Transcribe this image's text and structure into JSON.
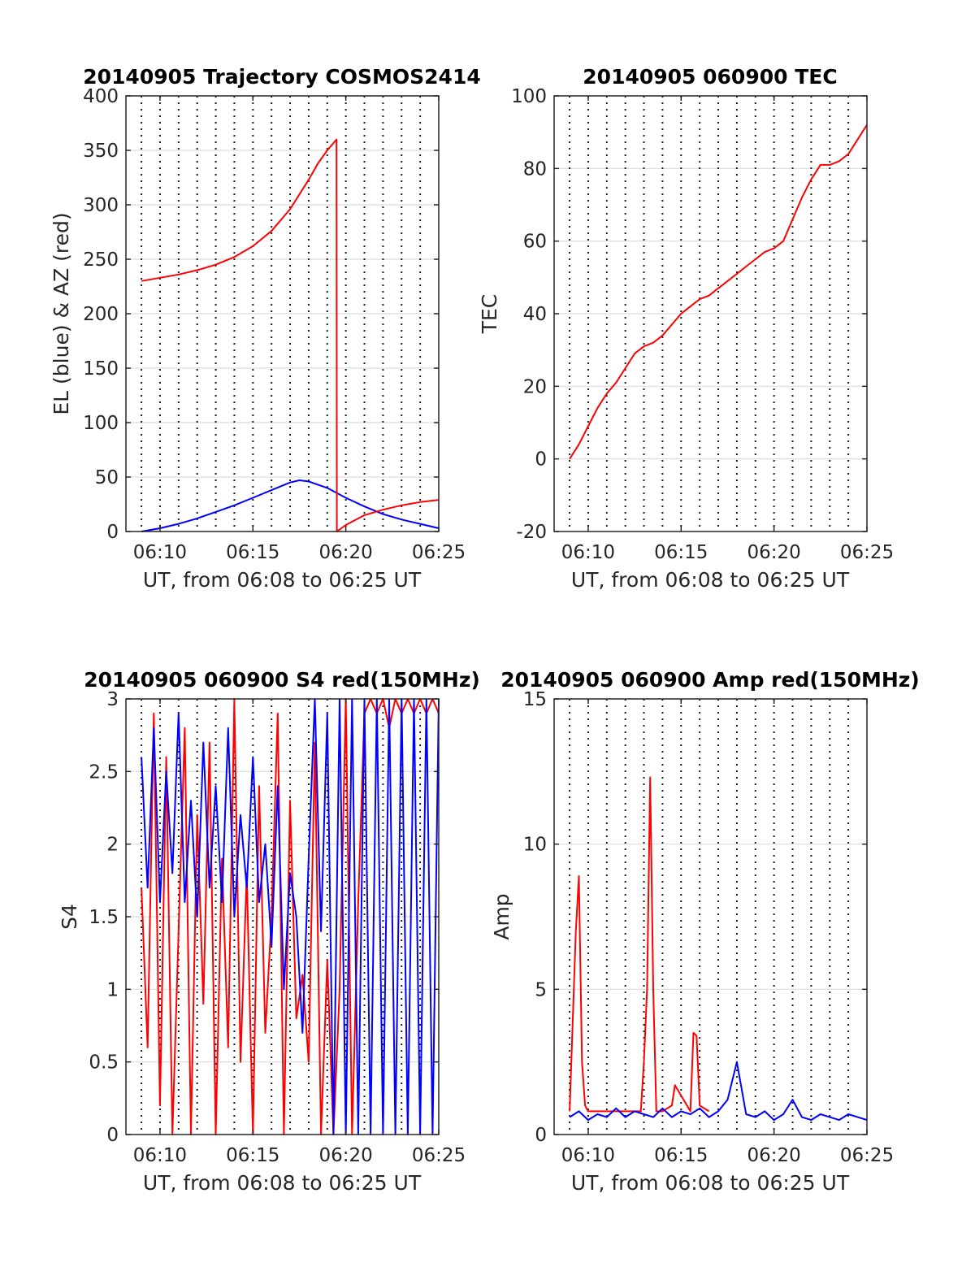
{
  "figure": {
    "xlabel": "UT, from 06:08 to 06:25 UT",
    "x_tick_labels": [
      "06:10",
      "06:15",
      "06:20",
      "06:25"
    ]
  },
  "chart_data": [
    {
      "id": "trajectory",
      "type": "line",
      "title": "20140905 Trajectory COSMOS2414",
      "xlabel": "UT, from 06:08 to 06:25 UT",
      "ylabel": "EL (blue) & AZ (red)",
      "xlim": [
        "06:08:10",
        "06:25:00"
      ],
      "ylim": [
        0,
        400
      ],
      "y_ticks": [
        0,
        50,
        100,
        150,
        200,
        250,
        300,
        350,
        400
      ],
      "x_ticks": [
        "06:10",
        "06:15",
        "06:20",
        "06:25"
      ],
      "grid": "on",
      "series": [
        {
          "color": "#0000ff",
          "x": [
            "06:09:00",
            "06:10:00",
            "06:11:00",
            "06:12:00",
            "06:13:00",
            "06:14:00",
            "06:15:00",
            "06:16:00",
            "06:17:00",
            "06:17:30",
            "06:18:00",
            "06:19:00",
            "06:20:00",
            "06:21:00",
            "06:22:00",
            "06:23:00",
            "06:24:00",
            "06:25:00"
          ],
          "y": [
            0,
            3,
            7,
            12,
            18,
            24,
            31,
            38,
            45,
            47,
            46,
            40,
            31,
            23,
            16,
            11,
            7,
            3
          ]
        },
        {
          "color": "#ff0000",
          "x": [
            "06:09:00",
            "06:10:00",
            "06:11:00",
            "06:12:00",
            "06:13:00",
            "06:14:00",
            "06:15:00",
            "06:16:00",
            "06:17:00",
            "06:18:00",
            "06:18:30",
            "06:19:00",
            "06:19:30",
            "06:19:31",
            "06:20:00",
            "06:21:00",
            "06:22:00",
            "06:23:00",
            "06:24:00",
            "06:25:00"
          ],
          "y": [
            230,
            233,
            236,
            240,
            245,
            252,
            262,
            276,
            296,
            323,
            338,
            350,
            360,
            0,
            6,
            15,
            20,
            24,
            27,
            29
          ]
        }
      ]
    },
    {
      "id": "tec",
      "type": "line",
      "title": "20140905 060900 TEC",
      "xlabel": "UT, from 06:08 to 06:25 UT",
      "ylabel": "TEC",
      "xlim": [
        "06:08:10",
        "06:25:00"
      ],
      "ylim": [
        -20,
        100
      ],
      "y_ticks": [
        -20,
        0,
        20,
        40,
        60,
        80,
        100
      ],
      "x_ticks": [
        "06:10",
        "06:15",
        "06:20",
        "06:25"
      ],
      "grid": "on",
      "series": [
        {
          "color": "#ff0000",
          "x": [
            "06:09:00",
            "06:09:30",
            "06:10:00",
            "06:10:30",
            "06:11:00",
            "06:11:30",
            "06:12:00",
            "06:12:30",
            "06:13:00",
            "06:13:30",
            "06:14:00",
            "06:14:30",
            "06:15:00",
            "06:15:30",
            "06:16:00",
            "06:16:30",
            "06:17:00",
            "06:17:30",
            "06:18:00",
            "06:18:30",
            "06:19:00",
            "06:19:30",
            "06:20:00",
            "06:20:30",
            "06:21:00",
            "06:21:30",
            "06:22:00",
            "06:22:30",
            "06:23:00",
            "06:23:30",
            "06:24:00",
            "06:24:30",
            "06:25:00"
          ],
          "y": [
            0,
            4,
            9,
            14,
            18,
            21,
            25,
            29,
            31,
            32,
            34,
            37,
            40,
            42,
            44,
            45,
            47,
            49,
            51,
            53,
            55,
            57,
            58,
            60,
            66,
            72,
            77,
            81,
            81,
            82,
            84,
            88,
            92
          ]
        }
      ]
    },
    {
      "id": "s4",
      "type": "line",
      "title": "20140905 060900 S4 red(150MHz)",
      "xlabel": "UT, from 06:08 to 06:25 UT",
      "ylabel": "S4",
      "xlim": [
        "06:08:10",
        "06:25:00"
      ],
      "ylim": [
        0,
        3
      ],
      "y_ticks": [
        0,
        0.5,
        1,
        1.5,
        2,
        2.5,
        3
      ],
      "y_tick_labels": [
        "0",
        "0.5",
        "1",
        "1.5",
        "2",
        "2.5",
        "3"
      ],
      "x_ticks": [
        "06:10",
        "06:15",
        "06:20",
        "06:25"
      ],
      "grid": "on",
      "series": [
        {
          "color": "#ff0000",
          "x": [
            "06:09:00",
            "06:09:20",
            "06:09:40",
            "06:10:00",
            "06:10:20",
            "06:10:40",
            "06:11:00",
            "06:11:20",
            "06:11:40",
            "06:12:00",
            "06:12:20",
            "06:12:40",
            "06:13:00",
            "06:13:20",
            "06:13:40",
            "06:14:00",
            "06:14:20",
            "06:14:40",
            "06:15:00",
            "06:15:20",
            "06:15:40",
            "06:16:00",
            "06:16:20",
            "06:16:40",
            "06:17:00",
            "06:17:20",
            "06:17:40",
            "06:18:00",
            "06:18:20",
            "06:18:40",
            "06:19:00",
            "06:19:20",
            "06:19:40",
            "06:20:00",
            "06:20:20",
            "06:20:40",
            "06:21:00",
            "06:21:20",
            "06:21:40",
            "06:22:00",
            "06:22:20",
            "06:22:40",
            "06:23:00",
            "06:23:20",
            "06:23:40",
            "06:24:00",
            "06:24:20",
            "06:24:40",
            "06:25:00"
          ],
          "y": [
            1.7,
            0.6,
            2.9,
            0.2,
            2.6,
            0.0,
            1.4,
            2.8,
            0.0,
            2.2,
            0.9,
            2.7,
            0.0,
            1.9,
            0.6,
            3.0,
            0.5,
            1.8,
            0.0,
            2.4,
            0.7,
            1.5,
            2.9,
            0.0,
            2.3,
            0.8,
            1.1,
            0.5,
            2.7,
            0.0,
            1.2,
            0.0,
            1.0,
            3.0,
            0.0,
            1.6,
            2.9,
            3.0,
            2.9,
            3.0,
            2.8,
            3.0,
            2.9,
            3.0,
            2.9,
            3.0,
            2.9,
            3.0,
            2.9
          ]
        },
        {
          "color": "#0000ff",
          "x": [
            "06:09:00",
            "06:09:20",
            "06:09:40",
            "06:10:00",
            "06:10:20",
            "06:10:40",
            "06:11:00",
            "06:11:20",
            "06:11:40",
            "06:12:00",
            "06:12:20",
            "06:12:40",
            "06:13:00",
            "06:13:20",
            "06:13:40",
            "06:14:00",
            "06:14:20",
            "06:14:40",
            "06:15:00",
            "06:15:20",
            "06:15:40",
            "06:16:00",
            "06:16:20",
            "06:16:40",
            "06:17:00",
            "06:17:20",
            "06:17:40",
            "06:18:00",
            "06:18:20",
            "06:18:40",
            "06:19:00",
            "06:19:20",
            "06:19:40",
            "06:20:00",
            "06:20:20",
            "06:20:40",
            "06:21:00",
            "06:21:20",
            "06:21:40",
            "06:22:00",
            "06:22:20",
            "06:22:40",
            "06:23:00",
            "06:23:20",
            "06:23:40",
            "06:24:00",
            "06:24:20",
            "06:24:40",
            "06:25:00"
          ],
          "y": [
            2.6,
            1.7,
            2.8,
            1.6,
            2.5,
            1.8,
            2.9,
            1.6,
            2.3,
            1.5,
            2.7,
            1.7,
            2.4,
            1.6,
            2.8,
            1.5,
            2.2,
            1.7,
            2.6,
            1.6,
            2.0,
            1.3,
            2.4,
            1.0,
            1.8,
            1.5,
            0.7,
            1.9,
            3.0,
            1.4,
            2.9,
            0.0,
            3.0,
            0.0,
            3.0,
            0.0,
            3.0,
            0.0,
            3.0,
            0.0,
            3.0,
            0.0,
            3.0,
            0.0,
            3.0,
            0.0,
            3.0,
            0.0,
            3.0
          ]
        }
      ]
    },
    {
      "id": "amp",
      "type": "line",
      "title": "20140905 060900 Amp red(150MHz)",
      "xlabel": "UT, from 06:08 to 06:25 UT",
      "ylabel": "Amp",
      "xlim": [
        "06:08:10",
        "06:25:00"
      ],
      "ylim": [
        0,
        15
      ],
      "y_ticks": [
        0,
        5,
        10,
        15
      ],
      "x_ticks": [
        "06:10",
        "06:15",
        "06:20",
        "06:25"
      ],
      "grid": "on",
      "series": [
        {
          "color": "#ff0000",
          "x": [
            "06:09:00",
            "06:09:20",
            "06:09:30",
            "06:09:40",
            "06:09:50",
            "06:10:00",
            "06:10:20",
            "06:12:50",
            "06:13:00",
            "06:13:10",
            "06:13:20",
            "06:13:30",
            "06:13:40",
            "06:14:00",
            "06:14:30",
            "06:14:40",
            "06:15:30",
            "06:15:40",
            "06:15:50",
            "06:16:00",
            "06:16:30"
          ],
          "y": [
            0.8,
            7.0,
            8.9,
            2.5,
            1.0,
            0.8,
            0.8,
            0.8,
            2.5,
            5.0,
            12.3,
            5.0,
            0.8,
            0.8,
            1.0,
            1.7,
            0.8,
            3.5,
            3.4,
            1.0,
            0.8
          ]
        },
        {
          "color": "#0000ff",
          "x": [
            "06:09:00",
            "06:09:30",
            "06:10:00",
            "06:10:30",
            "06:11:00",
            "06:11:30",
            "06:12:00",
            "06:12:30",
            "06:13:00",
            "06:13:30",
            "06:14:00",
            "06:14:30",
            "06:15:00",
            "06:15:30",
            "06:16:00",
            "06:16:30",
            "06:17:00",
            "06:17:30",
            "06:18:00",
            "06:18:30",
            "06:19:00",
            "06:19:30",
            "06:20:00",
            "06:20:30",
            "06:21:00",
            "06:21:30",
            "06:22:00",
            "06:22:30",
            "06:23:00",
            "06:23:30",
            "06:24:00",
            "06:24:30",
            "06:25:00"
          ],
          "y": [
            0.6,
            0.8,
            0.5,
            0.7,
            0.6,
            0.9,
            0.6,
            0.8,
            0.7,
            0.6,
            0.9,
            0.6,
            0.8,
            0.7,
            0.9,
            0.6,
            0.8,
            1.2,
            2.5,
            0.7,
            0.6,
            0.8,
            0.5,
            0.7,
            1.2,
            0.6,
            0.5,
            0.7,
            0.6,
            0.5,
            0.7,
            0.6,
            0.5
          ]
        }
      ]
    }
  ]
}
